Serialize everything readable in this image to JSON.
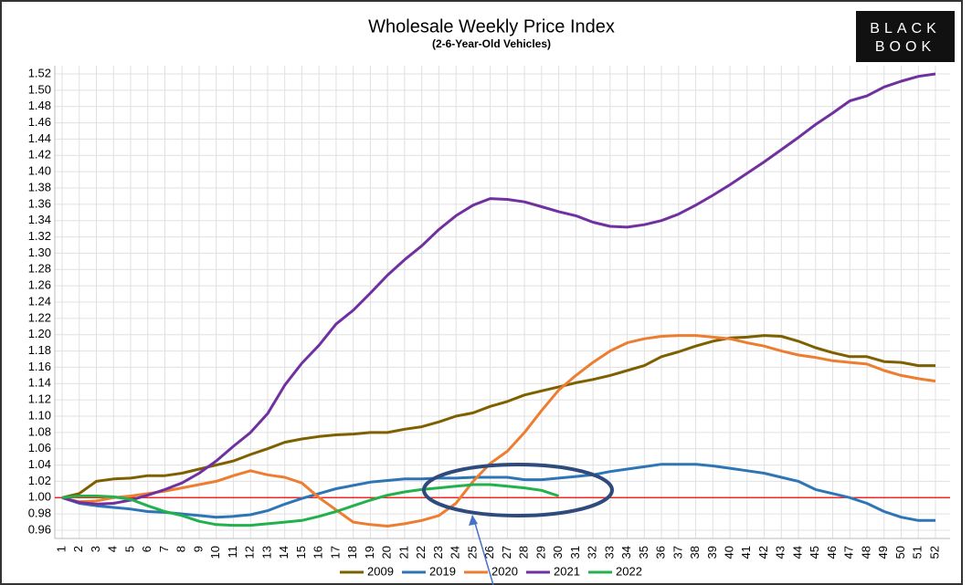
{
  "chart_data": {
    "type": "line",
    "title": "Wholesale Weekly Price Index",
    "subtitle": "(2-6-Year-Old Vehicles)",
    "categories": [
      "1",
      "2",
      "3",
      "4",
      "5",
      "6",
      "7",
      "8",
      "9",
      "10",
      "11",
      "12",
      "13",
      "14",
      "15",
      "16",
      "17",
      "18",
      "19",
      "20",
      "21",
      "22",
      "23",
      "24",
      "25",
      "26",
      "27",
      "28",
      "29",
      "30",
      "31",
      "32",
      "33",
      "34",
      "35",
      "36",
      "37",
      "38",
      "39",
      "40",
      "41",
      "42",
      "43",
      "44",
      "45",
      "46",
      "47",
      "48",
      "49",
      "50",
      "51",
      "52"
    ],
    "series": [
      {
        "name": "2009",
        "color": "#7f6000",
        "values": [
          1.0,
          1.005,
          1.02,
          1.023,
          1.024,
          1.027,
          1.027,
          1.03,
          1.035,
          1.04,
          1.045,
          1.053,
          1.06,
          1.068,
          1.072,
          1.075,
          1.077,
          1.078,
          1.08,
          1.08,
          1.084,
          1.087,
          1.093,
          1.1,
          1.104,
          1.112,
          1.118,
          1.126,
          1.131,
          1.136,
          1.141,
          1.145,
          1.15,
          1.156,
          1.162,
          1.173,
          1.179,
          1.186,
          1.192,
          1.196,
          1.197,
          1.199,
          1.198,
          1.192,
          1.184,
          1.178,
          1.173,
          1.173,
          1.167,
          1.166,
          1.162,
          1.162
        ]
      },
      {
        "name": "2019",
        "color": "#2e75b6",
        "values": [
          1.0,
          0.993,
          0.99,
          0.988,
          0.986,
          0.983,
          0.982,
          0.98,
          0.978,
          0.976,
          0.977,
          0.979,
          0.984,
          0.992,
          0.999,
          1.005,
          1.011,
          1.015,
          1.019,
          1.021,
          1.023,
          1.023,
          1.024,
          1.024,
          1.025,
          1.025,
          1.025,
          1.022,
          1.022,
          1.024,
          1.026,
          1.028,
          1.032,
          1.035,
          1.038,
          1.041,
          1.041,
          1.041,
          1.039,
          1.036,
          1.033,
          1.03,
          1.025,
          1.02,
          1.01,
          1.005,
          1.0,
          0.993,
          0.983,
          0.976,
          0.972,
          0.972
        ]
      },
      {
        "name": "2020",
        "color": "#ed7d31",
        "values": [
          1.0,
          0.995,
          0.996,
          1.0,
          1.002,
          1.005,
          1.008,
          1.012,
          1.016,
          1.02,
          1.027,
          1.033,
          1.028,
          1.025,
          1.018,
          1.0,
          0.985,
          0.97,
          0.967,
          0.965,
          0.968,
          0.972,
          0.978,
          0.993,
          1.02,
          1.042,
          1.057,
          1.08,
          1.107,
          1.132,
          1.15,
          1.166,
          1.18,
          1.19,
          1.195,
          1.198,
          1.199,
          1.199,
          1.197,
          1.195,
          1.19,
          1.186,
          1.18,
          1.175,
          1.172,
          1.168,
          1.166,
          1.164,
          1.156,
          1.15,
          1.146,
          1.143
        ]
      },
      {
        "name": "2021",
        "color": "#7030a0",
        "values": [
          1.0,
          0.994,
          0.992,
          0.993,
          0.997,
          1.003,
          1.01,
          1.018,
          1.03,
          1.045,
          1.063,
          1.08,
          1.103,
          1.138,
          1.165,
          1.187,
          1.213,
          1.23,
          1.251,
          1.273,
          1.292,
          1.309,
          1.329,
          1.346,
          1.359,
          1.367,
          1.366,
          1.363,
          1.357,
          1.351,
          1.346,
          1.338,
          1.333,
          1.332,
          1.335,
          1.34,
          1.348,
          1.359,
          1.371,
          1.384,
          1.398,
          1.412,
          1.427,
          1.442,
          1.458,
          1.472,
          1.487,
          1.493,
          1.504,
          1.511,
          1.517,
          1.52
        ]
      },
      {
        "name": "2022",
        "color": "#22b14c",
        "values": [
          1.0,
          1.002,
          1.002,
          1.001,
          0.998,
          0.99,
          0.983,
          0.978,
          0.971,
          0.967,
          0.966,
          0.966,
          0.968,
          0.97,
          0.972,
          0.977,
          0.983,
          0.99,
          0.997,
          1.003,
          1.007,
          1.01,
          1.012,
          1.014,
          1.016,
          1.016,
          1.014,
          1.012,
          1.009,
          1.002,
          null,
          null,
          null,
          null,
          null,
          null,
          null,
          null,
          null,
          null,
          null,
          null,
          null,
          null,
          null,
          null,
          null,
          null,
          null,
          null,
          null,
          null
        ]
      }
    ],
    "ylim": [
      0.96,
      1.52
    ],
    "yticks": [
      {
        "value": 0.96,
        "label": "0.96"
      },
      {
        "value": 0.98,
        "label": "0.98"
      },
      {
        "value": 1.0,
        "label": "1.00"
      },
      {
        "value": 1.02,
        "label": "1.02"
      },
      {
        "value": 1.04,
        "label": "1.04"
      },
      {
        "value": 1.06,
        "label": "1.06"
      },
      {
        "value": 1.08,
        "label": "1.08"
      },
      {
        "value": 1.1,
        "label": "1.10"
      },
      {
        "value": 1.12,
        "label": "1.12"
      },
      {
        "value": 1.14,
        "label": "1.14"
      },
      {
        "value": 1.16,
        "label": "1.16"
      },
      {
        "value": 1.18,
        "label": "1.18"
      },
      {
        "value": 1.2,
        "label": "1.20"
      },
      {
        "value": 1.22,
        "label": "1.22"
      },
      {
        "value": 1.24,
        "label": "1.24"
      },
      {
        "value": 1.26,
        "label": "1.26"
      },
      {
        "value": 1.28,
        "label": "1.28"
      },
      {
        "value": 1.3,
        "label": "1.30"
      },
      {
        "value": 1.32,
        "label": "1.32"
      },
      {
        "value": 1.34,
        "label": "1.34"
      },
      {
        "value": 1.36,
        "label": "1.36"
      },
      {
        "value": 1.38,
        "label": "1.38"
      },
      {
        "value": 1.4,
        "label": "1.40"
      },
      {
        "value": 1.42,
        "label": "1.42"
      },
      {
        "value": 1.44,
        "label": "1.44"
      },
      {
        "value": 1.46,
        "label": "1.46"
      },
      {
        "value": 1.48,
        "label": "1.48"
      },
      {
        "value": 1.5,
        "label": "1.50"
      },
      {
        "value": 1.52,
        "label": "1.52"
      }
    ],
    "grid": true,
    "reference_line": {
      "value": 1.0,
      "color": "#ff0000"
    },
    "legend": "bottom"
  },
  "logo": {
    "lines": [
      "BLACK",
      "BOOK"
    ]
  }
}
